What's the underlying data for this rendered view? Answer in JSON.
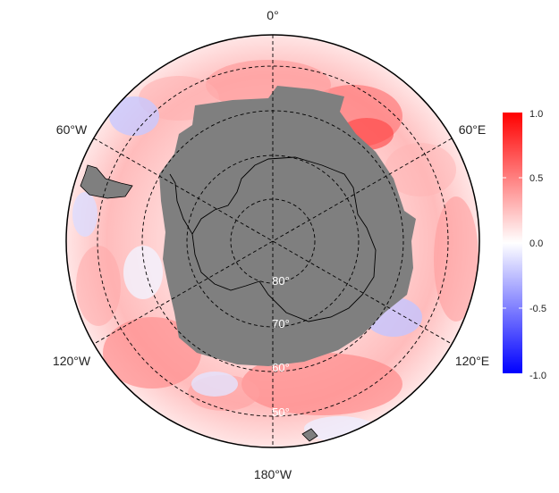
{
  "map": {
    "projection": "south polar stereographic",
    "longitude_labels": {
      "top": "0°",
      "upper_left": "60°W",
      "upper_right": "60°E",
      "lower_left": "120°W",
      "lower_right": "120°E",
      "bottom": "180°W"
    },
    "latitude_labels": [
      "80°",
      "70°",
      "60°",
      "50°"
    ],
    "land_color": "#7f7f7f",
    "ocean_field": "diverging anomaly field, mostly positive (red), weak negative patches (blue)",
    "colorbar": {
      "colormap": [
        "#0000ff",
        "#ffffff",
        "#ff0000"
      ],
      "range": [
        -1.0,
        1.0
      ],
      "ticks": [
        "1.0",
        "0.5",
        "0.0",
        "-0.5",
        "-1.0"
      ]
    }
  }
}
